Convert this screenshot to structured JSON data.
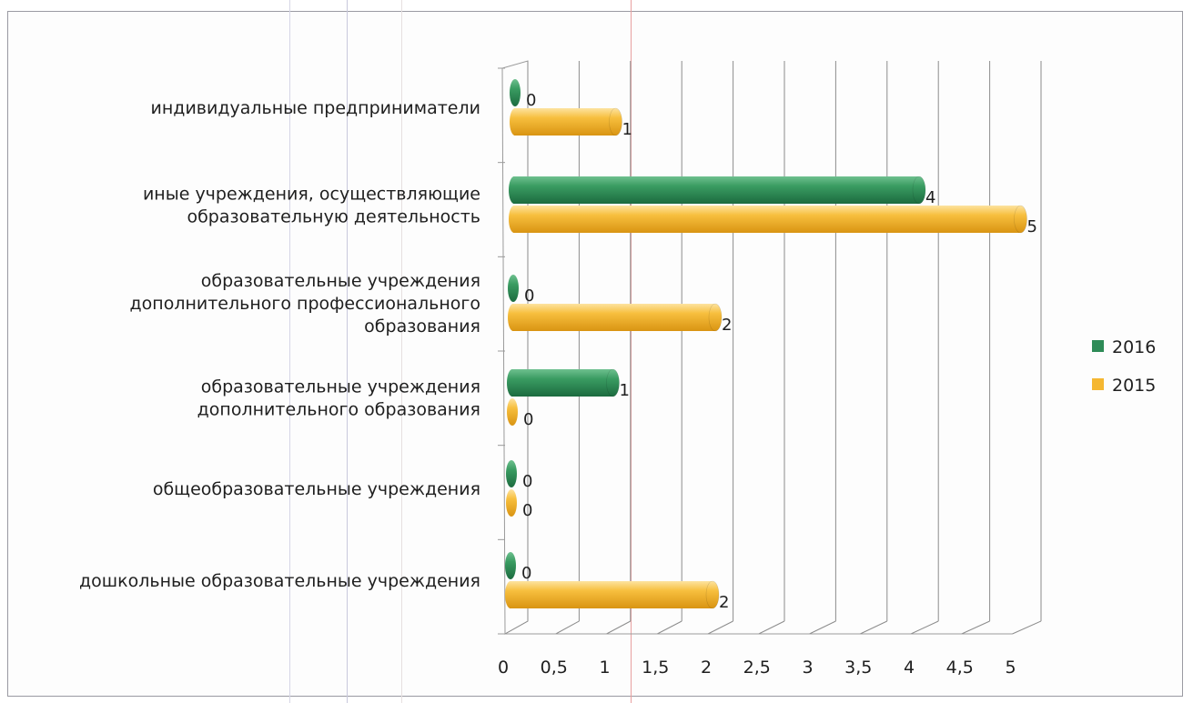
{
  "chart_data": {
    "type": "bar",
    "orientation": "horizontal",
    "style": "3d-cylinder",
    "categories": [
      [
        "индивидуальные предприниматели"
      ],
      [
        "иные учреждения, осуществляющие",
        "образовательную деятельность"
      ],
      [
        "образовательные учреждения",
        "дополнительного профессионального",
        "образования"
      ],
      [
        "образовательные учреждения",
        "дополнительного образования"
      ],
      [
        "общеобразовательные учреждения"
      ],
      [
        "дошкольные образовательные учреждения"
      ]
    ],
    "series": [
      {
        "name": "2016",
        "color": "#2e8b57",
        "values": [
          0,
          4,
          0,
          1,
          0,
          0
        ]
      },
      {
        "name": "2015",
        "color": "#f5b731",
        "values": [
          1,
          5,
          2,
          0,
          0,
          2
        ]
      }
    ],
    "xlim": [
      0,
      5
    ],
    "xticks": [
      "0",
      "0,5",
      "1",
      "1,5",
      "2",
      "2,5",
      "3",
      "3,5",
      "4",
      "4,5",
      "5"
    ],
    "grid": true,
    "legend_position": "right"
  }
}
